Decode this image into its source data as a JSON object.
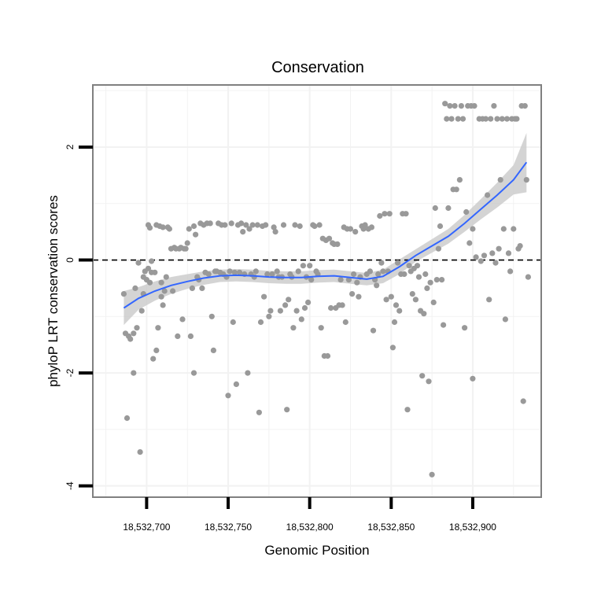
{
  "chart_data": {
    "type": "scatter",
    "title": "Conservation",
    "xlabel": "Genomic Position",
    "ylabel": "phyloP LRT conservation scores",
    "xlim": [
      18532667,
      18532942
    ],
    "ylim": [
      -4.2,
      3.1
    ],
    "x_ticks": [
      18532700,
      18532750,
      18532800,
      18532850,
      18532900
    ],
    "x_tick_labels": [
      "18,532,700",
      "18,532,750",
      "18,532,800",
      "18,532,850",
      "18,532,900"
    ],
    "y_ticks": [
      2,
      0,
      -2,
      -4
    ],
    "y_tick_labels": [
      "2",
      "0",
      "-2",
      "-4"
    ],
    "reference_line": {
      "y": 0,
      "style": "dashed"
    },
    "colors": {
      "points": "#999999",
      "smooth": "#3366ff",
      "band": "#cccccc",
      "grid": "#f2f2f2",
      "frame": "#808080"
    },
    "points": [
      [
        18532686,
        -0.6
      ],
      [
        18532687,
        -1.3
      ],
      [
        18532688,
        -2.8
      ],
      [
        18532689,
        -1.35
      ],
      [
        18532690,
        -1.4
      ],
      [
        18532692,
        -2.0
      ],
      [
        18532692,
        -1.3
      ],
      [
        18532693,
        -0.5
      ],
      [
        18532694,
        -1.2
      ],
      [
        18532695,
        -0.05
      ],
      [
        18532696,
        -3.4
      ],
      [
        18532697,
        -0.9
      ],
      [
        18532698,
        -0.3
      ],
      [
        18532698,
        -0.6
      ],
      [
        18532699,
        -0.2
      ],
      [
        18532700,
        -0.35
      ],
      [
        18532701,
        0.62
      ],
      [
        18532701,
        -0.15
      ],
      [
        18532702,
        0.57
      ],
      [
        18532702,
        -0.4
      ],
      [
        18532703,
        -0.22
      ],
      [
        18532703,
        -0.02
      ],
      [
        18532704,
        -1.75
      ],
      [
        18532705,
        -0.22
      ],
      [
        18532706,
        -1.6
      ],
      [
        18532706,
        0.62
      ],
      [
        18532707,
        -1.2
      ],
      [
        18532708,
        0.6
      ],
      [
        18532709,
        -0.4
      ],
      [
        18532709,
        -0.65
      ],
      [
        18532710,
        0.58
      ],
      [
        18532710,
        -0.8
      ],
      [
        18532711,
        -0.55
      ],
      [
        18532712,
        -0.3
      ],
      [
        18532713,
        0.58
      ],
      [
        18532714,
        0.55
      ],
      [
        18532715,
        0.2
      ],
      [
        18532716,
        -0.55
      ],
      [
        18532717,
        0.22
      ],
      [
        18532718,
        0.2
      ],
      [
        18532719,
        -1.35
      ],
      [
        18532720,
        0.2
      ],
      [
        18532721,
        0.22
      ],
      [
        18532722,
        -1.05
      ],
      [
        18532723,
        0.2
      ],
      [
        18532724,
        0.2
      ],
      [
        18532725,
        0.3
      ],
      [
        18532726,
        0.55
      ],
      [
        18532727,
        -1.35
      ],
      [
        18532728,
        -0.5
      ],
      [
        18532729,
        -2.0
      ],
      [
        18532729,
        0.6
      ],
      [
        18532730,
        0.45
      ],
      [
        18532731,
        -0.3
      ],
      [
        18532732,
        -0.35
      ],
      [
        18532733,
        0.65
      ],
      [
        18532734,
        -0.5
      ],
      [
        18532735,
        0.62
      ],
      [
        18532736,
        -0.22
      ],
      [
        18532737,
        0.65
      ],
      [
        18532738,
        -0.25
      ],
      [
        18532739,
        0.65
      ],
      [
        18532740,
        -1.0
      ],
      [
        18532741,
        -1.6
      ],
      [
        18532742,
        -0.2
      ],
      [
        18532743,
        -0.2
      ],
      [
        18532744,
        0.65
      ],
      [
        18532745,
        -0.22
      ],
      [
        18532746,
        0.62
      ],
      [
        18532747,
        -0.25
      ],
      [
        18532748,
        0.62
      ],
      [
        18532749,
        -0.3
      ],
      [
        18532750,
        -2.4
      ],
      [
        18532751,
        -0.2
      ],
      [
        18532752,
        0.65
      ],
      [
        18532753,
        -1.1
      ],
      [
        18532754,
        -0.22
      ],
      [
        18532755,
        -2.2
      ],
      [
        18532756,
        0.62
      ],
      [
        18532757,
        -0.22
      ],
      [
        18532758,
        0.65
      ],
      [
        18532759,
        0.5
      ],
      [
        18532760,
        -0.25
      ],
      [
        18532761,
        0.62
      ],
      [
        18532762,
        -2.0
      ],
      [
        18532763,
        0.55
      ],
      [
        18532764,
        -0.25
      ],
      [
        18532765,
        0.62
      ],
      [
        18532766,
        -0.3
      ],
      [
        18532767,
        -0.2
      ],
      [
        18532768,
        0.62
      ],
      [
        18532769,
        -2.7
      ],
      [
        18532770,
        -1.1
      ],
      [
        18532771,
        0.6
      ],
      [
        18532772,
        -0.65
      ],
      [
        18532773,
        0.62
      ],
      [
        18532774,
        -0.25
      ],
      [
        18532775,
        -1.0
      ],
      [
        18532776,
        -0.9
      ],
      [
        18532777,
        -0.25
      ],
      [
        18532778,
        0.58
      ],
      [
        18532779,
        0.5
      ],
      [
        18532780,
        -0.2
      ],
      [
        18532781,
        -0.3
      ],
      [
        18532782,
        -0.9
      ],
      [
        18532783,
        -0.3
      ],
      [
        18532784,
        0.62
      ],
      [
        18532785,
        -0.8
      ],
      [
        18532786,
        -2.65
      ],
      [
        18532787,
        -0.7
      ],
      [
        18532788,
        -0.25
      ],
      [
        18532789,
        -0.3
      ],
      [
        18532790,
        -1.2
      ],
      [
        18532791,
        0.62
      ],
      [
        18532792,
        -0.9
      ],
      [
        18532793,
        -0.2
      ],
      [
        18532794,
        0.6
      ],
      [
        18532795,
        -1.05
      ],
      [
        18532796,
        -0.1
      ],
      [
        18532797,
        -0.85
      ],
      [
        18532798,
        -0.3
      ],
      [
        18532799,
        -0.75
      ],
      [
        18532800,
        -0.1
      ],
      [
        18532801,
        -0.35
      ],
      [
        18532802,
        0.62
      ],
      [
        18532803,
        0.6
      ],
      [
        18532804,
        -0.2
      ],
      [
        18532805,
        -0.25
      ],
      [
        18532806,
        0.62
      ],
      [
        18532807,
        -1.2
      ],
      [
        18532808,
        0.38
      ],
      [
        18532809,
        -1.7
      ],
      [
        18532810,
        0.35
      ],
      [
        18532811,
        -1.7
      ],
      [
        18532812,
        0.38
      ],
      [
        18532813,
        -0.85
      ],
      [
        18532814,
        0.3
      ],
      [
        18532815,
        0.28
      ],
      [
        18532816,
        -0.85
      ],
      [
        18532817,
        0.28
      ],
      [
        18532818,
        -0.8
      ],
      [
        18532819,
        -0.35
      ],
      [
        18532820,
        -0.8
      ],
      [
        18532821,
        0.58
      ],
      [
        18532822,
        -1.1
      ],
      [
        18532823,
        0.55
      ],
      [
        18532824,
        -0.35
      ],
      [
        18532825,
        0.55
      ],
      [
        18532826,
        -0.6
      ],
      [
        18532827,
        -0.25
      ],
      [
        18532828,
        0.5
      ],
      [
        18532829,
        -0.4
      ],
      [
        18532830,
        -0.65
      ],
      [
        18532831,
        -0.3
      ],
      [
        18532832,
        0.6
      ],
      [
        18532833,
        0.55
      ],
      [
        18532834,
        0.62
      ],
      [
        18532835,
        -0.25
      ],
      [
        18532836,
        0.55
      ],
      [
        18532837,
        -0.2
      ],
      [
        18532838,
        0.58
      ],
      [
        18532839,
        -1.25
      ],
      [
        18532840,
        -0.35
      ],
      [
        18532841,
        -0.45
      ],
      [
        18532842,
        -0.25
      ],
      [
        18532843,
        0.78
      ],
      [
        18532844,
        -0.05
      ],
      [
        18532845,
        -0.2
      ],
      [
        18532846,
        0.82
      ],
      [
        18532847,
        -0.7
      ],
      [
        18532848,
        -0.2
      ],
      [
        18532849,
        0.82
      ],
      [
        18532850,
        -0.65
      ],
      [
        18532851,
        -1.55
      ],
      [
        18532852,
        -1.1
      ],
      [
        18532853,
        -0.8
      ],
      [
        18532854,
        -0.05
      ],
      [
        18532855,
        -0.9
      ],
      [
        18532856,
        -0.25
      ],
      [
        18532857,
        0.82
      ],
      [
        18532858,
        -0.25
      ],
      [
        18532859,
        0.82
      ],
      [
        18532860,
        -2.65
      ],
      [
        18532861,
        -0.1
      ],
      [
        18532862,
        -0.2
      ],
      [
        18532863,
        -0.6
      ],
      [
        18532864,
        -0.15
      ],
      [
        18532865,
        -0.7
      ],
      [
        18532866,
        -0.1
      ],
      [
        18532867,
        -0.3
      ],
      [
        18532868,
        -0.9
      ],
      [
        18532869,
        -2.05
      ],
      [
        18532870,
        -0.95
      ],
      [
        18532871,
        -0.25
      ],
      [
        18532872,
        -0.5
      ],
      [
        18532873,
        -2.15
      ],
      [
        18532874,
        -0.4
      ],
      [
        18532875,
        -3.8
      ],
      [
        18532876,
        -0.75
      ],
      [
        18532877,
        0.92
      ],
      [
        18532878,
        -0.35
      ],
      [
        18532879,
        0.2
      ],
      [
        18532880,
        0.6
      ],
      [
        18532881,
        -0.35
      ],
      [
        18532882,
        -1.15
      ],
      [
        18532883,
        2.77
      ],
      [
        18532884,
        2.5
      ],
      [
        18532885,
        0.92
      ],
      [
        18532886,
        2.73
      ],
      [
        18532887,
        2.5
      ],
      [
        18532888,
        1.25
      ],
      [
        18532889,
        2.73
      ],
      [
        18532890,
        1.25
      ],
      [
        18532891,
        2.5
      ],
      [
        18532892,
        1.42
      ],
      [
        18532893,
        2.73
      ],
      [
        18532894,
        2.5
      ],
      [
        18532895,
        -1.2
      ],
      [
        18532896,
        0.85
      ],
      [
        18532897,
        2.73
      ],
      [
        18532898,
        0.3
      ],
      [
        18532899,
        2.73
      ],
      [
        18532900,
        -2.1
      ],
      [
        18532900,
        0.55
      ],
      [
        18532901,
        2.73
      ],
      [
        18532902,
        0.05
      ],
      [
        18532904,
        2.5
      ],
      [
        18532905,
        -0.02
      ],
      [
        18532906,
        2.5
      ],
      [
        18532907,
        0.08
      ],
      [
        18532908,
        2.5
      ],
      [
        18532909,
        1.15
      ],
      [
        18532910,
        -0.7
      ],
      [
        18532911,
        2.5
      ],
      [
        18532912,
        0.12
      ],
      [
        18532913,
        2.73
      ],
      [
        18532914,
        -0.05
      ],
      [
        18532915,
        2.5
      ],
      [
        18532916,
        0.2
      ],
      [
        18532917,
        1.42
      ],
      [
        18532918,
        2.5
      ],
      [
        18532919,
        0.55
      ],
      [
        18532920,
        -1.05
      ],
      [
        18532921,
        2.5
      ],
      [
        18532922,
        0.12
      ],
      [
        18532923,
        -0.2
      ],
      [
        18532924,
        2.5
      ],
      [
        18532925,
        0.55
      ],
      [
        18532926,
        2.5
      ],
      [
        18532927,
        2.5
      ],
      [
        18532928,
        0.2
      ],
      [
        18532929,
        0.25
      ],
      [
        18532930,
        2.73
      ],
      [
        18532931,
        -2.5
      ],
      [
        18532932,
        2.73
      ],
      [
        18532933,
        1.42
      ],
      [
        18532934,
        -0.3
      ]
    ],
    "smooth": {
      "x": [
        18532686,
        18532695,
        18532705,
        18532715,
        18532725,
        18532735,
        18532745,
        18532755,
        18532765,
        18532775,
        18532785,
        18532795,
        18532805,
        18532815,
        18532825,
        18532835,
        18532845,
        18532855,
        18532865,
        18532875,
        18532885,
        18532895,
        18532905,
        18532915,
        18532925,
        18532933
      ],
      "y": [
        -0.85,
        -0.68,
        -0.55,
        -0.45,
        -0.38,
        -0.32,
        -0.28,
        -0.27,
        -0.28,
        -0.3,
        -0.31,
        -0.31,
        -0.29,
        -0.28,
        -0.31,
        -0.34,
        -0.29,
        -0.12,
        0.08,
        0.25,
        0.42,
        0.65,
        0.9,
        1.15,
        1.42,
        1.73
      ],
      "lower": [
        -1.15,
        -0.88,
        -0.72,
        -0.6,
        -0.51,
        -0.44,
        -0.39,
        -0.38,
        -0.39,
        -0.41,
        -0.42,
        -0.42,
        -0.4,
        -0.39,
        -0.42,
        -0.45,
        -0.41,
        -0.25,
        -0.03,
        0.13,
        0.29,
        0.5,
        0.72,
        0.93,
        1.16,
        1.2
      ],
      "upper": [
        -0.55,
        -0.48,
        -0.38,
        -0.3,
        -0.25,
        -0.2,
        -0.17,
        -0.16,
        -0.17,
        -0.19,
        -0.2,
        -0.2,
        -0.18,
        -0.17,
        -0.2,
        -0.23,
        -0.17,
        0.01,
        0.19,
        0.37,
        0.55,
        0.8,
        1.08,
        1.37,
        1.68,
        2.25
      ]
    }
  }
}
